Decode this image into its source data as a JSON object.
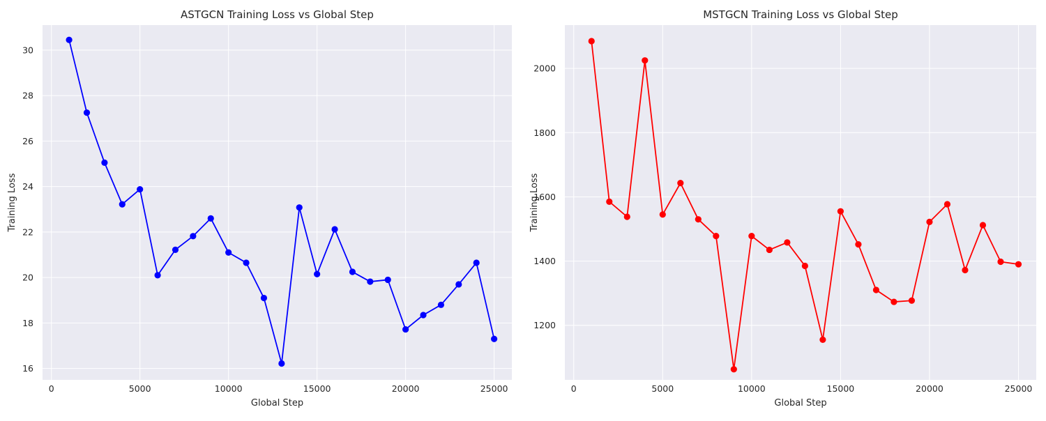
{
  "chart_data": [
    {
      "type": "line",
      "title": "ASTGCN Training Loss vs Global Step",
      "xlabel": "Global Step",
      "ylabel": "Training Loss",
      "xlim": [
        -500,
        26000
      ],
      "ylim": [
        15.5,
        31.1
      ],
      "xticks": [
        0,
        5000,
        10000,
        15000,
        20000,
        25000
      ],
      "yticks": [
        16,
        18,
        20,
        22,
        24,
        26,
        28,
        30
      ],
      "grid": true,
      "color": "#0000ff",
      "marker": "circle",
      "series": [
        {
          "x": [
            1000,
            2000,
            3000,
            4000,
            5000,
            6000,
            7000,
            8000,
            9000,
            10000,
            11000,
            12000,
            13000,
            14000,
            15000,
            16000,
            17000,
            18000,
            19000,
            20000,
            21000,
            22000,
            23000,
            24000,
            25000
          ],
          "y": [
            30.45,
            27.25,
            25.05,
            23.22,
            23.88,
            20.1,
            21.22,
            21.82,
            22.6,
            21.1,
            20.65,
            19.1,
            16.22,
            23.08,
            20.15,
            22.12,
            20.25,
            19.82,
            19.9,
            17.72,
            18.35,
            18.8,
            19.7,
            20.65,
            17.3
          ]
        }
      ]
    },
    {
      "type": "line",
      "title": "MSTGCN Training Loss vs Global Step",
      "xlabel": "Global Step",
      "ylabel": "Training Loss",
      "xlim": [
        -500,
        26000
      ],
      "ylim": [
        1030,
        2135
      ],
      "xticks": [
        0,
        5000,
        10000,
        15000,
        20000,
        25000
      ],
      "yticks": [
        1200,
        1400,
        1600,
        1800,
        2000
      ],
      "grid": true,
      "color": "#ff0000",
      "marker": "circle",
      "series": [
        {
          "x": [
            1000,
            2000,
            3000,
            4000,
            5000,
            6000,
            7000,
            8000,
            9000,
            10000,
            11000,
            12000,
            13000,
            14000,
            15000,
            16000,
            17000,
            18000,
            19000,
            20000,
            21000,
            22000,
            23000,
            24000,
            25000
          ],
          "y": [
            2085,
            1585,
            1538,
            2025,
            1545,
            1643,
            1530,
            1478,
            1063,
            1478,
            1435,
            1458,
            1385,
            1155,
            1555,
            1452,
            1310,
            1273,
            1277,
            1522,
            1577,
            1372,
            1512,
            1398,
            1390
          ]
        }
      ]
    }
  ]
}
